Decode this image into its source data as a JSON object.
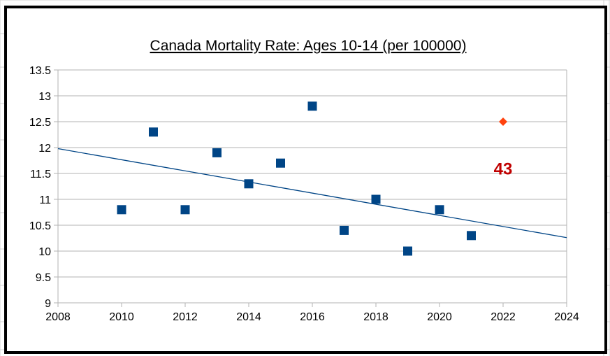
{
  "chart_data": {
    "type": "scatter",
    "title": "Canada Mortality Rate: Ages 10-14 (per 100000)",
    "xlabel": "",
    "ylabel": "",
    "xlim": [
      2008,
      2024
    ],
    "ylim": [
      9,
      13.5
    ],
    "x_ticks": [
      "2008",
      "2010",
      "2012",
      "2014",
      "2016",
      "2018",
      "2020",
      "2022",
      "2024"
    ],
    "y_ticks": [
      "9",
      "9.5",
      "10",
      "10.5",
      "11",
      "11.5",
      "12",
      "12.5",
      "13",
      "13.5"
    ],
    "grid": "horizontal",
    "series": [
      {
        "marker": "square",
        "color": "#004586",
        "points": [
          {
            "x": 2010,
            "y": 10.8
          },
          {
            "x": 2011,
            "y": 12.3
          },
          {
            "x": 2012,
            "y": 10.8
          },
          {
            "x": 2013,
            "y": 11.9
          },
          {
            "x": 2014,
            "y": 11.3
          },
          {
            "x": 2015,
            "y": 11.7
          },
          {
            "x": 2016,
            "y": 12.8
          },
          {
            "x": 2017,
            "y": 10.4
          },
          {
            "x": 2018,
            "y": 11.0
          },
          {
            "x": 2019,
            "y": 10.0
          },
          {
            "x": 2020,
            "y": 10.8
          },
          {
            "x": 2021,
            "y": 10.3
          }
        ]
      },
      {
        "marker": "diamond",
        "color": "#ff420e",
        "points": [
          {
            "x": 2022,
            "y": 12.5
          }
        ]
      }
    ],
    "trendline": {
      "color": "#004586",
      "from": {
        "x": 2008,
        "y": 11.98
      },
      "to": {
        "x": 2024,
        "y": 10.26
      }
    },
    "annotations": [
      {
        "text": "43",
        "x": 2022,
        "y": 11.6,
        "color": "#c00000"
      }
    ]
  }
}
